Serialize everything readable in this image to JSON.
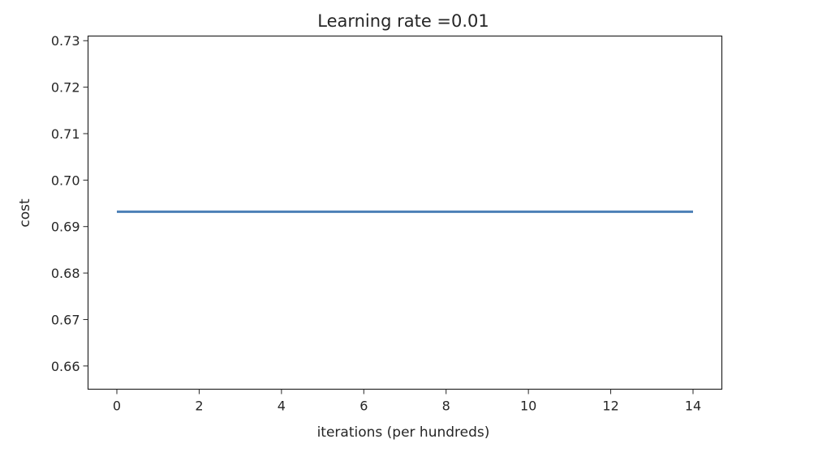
{
  "chart_data": {
    "type": "line",
    "title": "Learning rate =0.01",
    "xlabel": "iterations (per hundreds)",
    "ylabel": "cost",
    "xlim": [
      -0.7,
      14.7
    ],
    "ylim": [
      0.655,
      0.731
    ],
    "xticks": [
      0,
      2,
      4,
      6,
      8,
      10,
      12,
      14
    ],
    "xtick_labels": [
      "0",
      "2",
      "4",
      "6",
      "8",
      "10",
      "12",
      "14"
    ],
    "yticks": [
      0.66,
      0.67,
      0.68,
      0.69,
      0.7,
      0.71,
      0.72,
      0.73
    ],
    "ytick_labels": [
      "0.66",
      "0.67",
      "0.68",
      "0.69",
      "0.70",
      "0.71",
      "0.72",
      "0.73"
    ],
    "grid": false,
    "series": [
      {
        "color": "#4c7fb6",
        "x": [
          0,
          1,
          2,
          3,
          4,
          5,
          6,
          7,
          8,
          9,
          10,
          11,
          12,
          13,
          14
        ],
        "y": [
          0.6932,
          0.6932,
          0.6932,
          0.6932,
          0.6932,
          0.6932,
          0.6932,
          0.6932,
          0.6932,
          0.6932,
          0.6932,
          0.6932,
          0.6932,
          0.6932,
          0.6932
        ]
      }
    ]
  }
}
